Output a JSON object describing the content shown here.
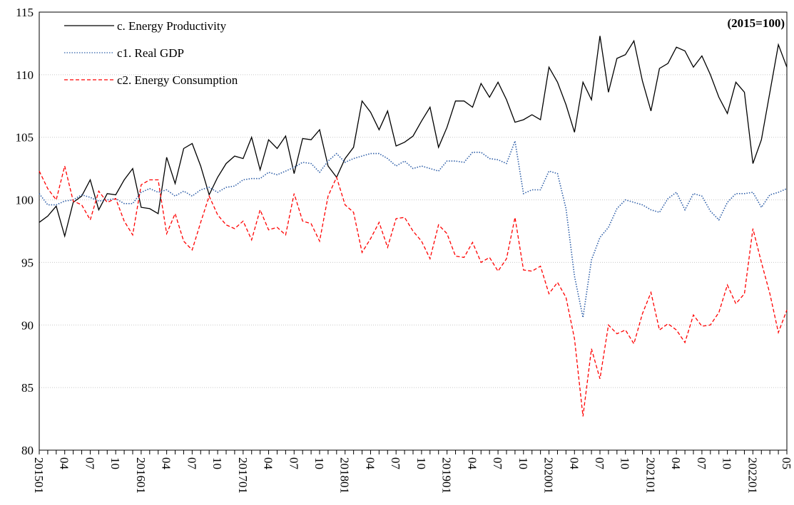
{
  "chart_data": {
    "type": "line",
    "annotation": "(2015=100)",
    "categories": [
      "201501",
      null,
      null,
      "04",
      null,
      null,
      "07",
      null,
      null,
      "10",
      null,
      null,
      "201601",
      null,
      null,
      "04",
      null,
      null,
      "07",
      null,
      null,
      "10",
      null,
      null,
      "201701",
      null,
      null,
      "04",
      null,
      null,
      "07",
      null,
      null,
      "10",
      null,
      null,
      "201801",
      null,
      null,
      "04",
      null,
      null,
      "07",
      null,
      null,
      "10",
      null,
      null,
      "201901",
      null,
      null,
      "04",
      null,
      null,
      "07",
      null,
      null,
      "10",
      null,
      null,
      "202001",
      null,
      null,
      "04",
      null,
      null,
      "07",
      null,
      null,
      "10",
      null,
      null,
      "202101",
      null,
      null,
      "04",
      null,
      null,
      "07",
      null,
      null,
      "10",
      null,
      null,
      "202201",
      null,
      null,
      null,
      "05"
    ],
    "series": [
      {
        "name": "c. Energy Productivity",
        "color": "#000000",
        "style": "solid",
        "values": [
          98.2,
          98.7,
          99.5,
          97.1,
          99.8,
          100.3,
          101.6,
          99.2,
          100.5,
          100.4,
          101.6,
          102.5,
          99.4,
          99.3,
          98.9,
          103.4,
          101.3,
          104.1,
          104.5,
          102.7,
          100.4,
          101.8,
          102.9,
          103.5,
          103.3,
          105.0,
          102.4,
          104.8,
          104.1,
          105.1,
          102.1,
          104.9,
          104.8,
          105.6,
          102.7,
          101.8,
          103.3,
          104.2,
          107.9,
          107.0,
          105.6,
          107.1,
          104.3,
          104.6,
          105.1,
          106.3,
          107.4,
          104.2,
          105.8,
          107.9,
          107.9,
          107.4,
          109.3,
          108.2,
          109.4,
          108.0,
          106.2,
          106.4,
          106.8,
          106.4,
          110.6,
          109.4,
          107.6,
          105.4,
          109.4,
          108.0,
          113.1,
          108.6,
          111.3,
          111.6,
          112.7,
          109.5,
          107.1,
          110.5,
          110.9,
          112.2,
          111.9,
          110.6,
          111.5,
          110.0,
          108.2,
          106.9,
          109.4,
          108.6,
          102.9,
          104.8,
          108.6,
          112.4,
          110.6
        ]
      },
      {
        "name": "c1. Real GDP",
        "color": "#2f5fa8",
        "style": "dotted",
        "values": [
          100.5,
          99.6,
          99.6,
          99.9,
          100.0,
          100.4,
          100.2,
          99.9,
          100.0,
          100.1,
          99.7,
          99.7,
          100.6,
          100.9,
          100.6,
          100.8,
          100.3,
          100.7,
          100.3,
          100.8,
          101.0,
          100.6,
          101.0,
          101.1,
          101.6,
          101.7,
          101.7,
          102.2,
          102.0,
          102.3,
          102.6,
          103.0,
          102.9,
          102.2,
          103.1,
          103.7,
          103.0,
          103.3,
          103.5,
          103.7,
          103.7,
          103.3,
          102.7,
          103.1,
          102.5,
          102.7,
          102.5,
          102.3,
          103.1,
          103.1,
          103.0,
          103.8,
          103.8,
          103.3,
          103.2,
          102.9,
          104.7,
          100.5,
          100.8,
          100.8,
          102.3,
          102.1,
          99.3,
          93.9,
          90.6,
          95.2,
          97.0,
          97.8,
          99.3,
          100.0,
          99.8,
          99.6,
          99.2,
          99.0,
          100.1,
          100.6,
          99.2,
          100.5,
          100.3,
          99.1,
          98.4,
          99.8,
          100.5,
          100.5,
          100.6,
          99.4,
          100.4,
          100.6,
          100.9
        ]
      },
      {
        "name": "c2. Energy Consumption",
        "color": "#ff0000",
        "style": "dashed",
        "values": [
          102.3,
          100.9,
          100.0,
          102.7,
          99.9,
          99.6,
          98.4,
          100.7,
          99.8,
          100.1,
          98.3,
          97.2,
          101.2,
          101.6,
          101.6,
          97.3,
          98.9,
          96.7,
          96.0,
          98.2,
          100.3,
          98.8,
          98.0,
          97.7,
          98.3,
          96.8,
          99.2,
          97.6,
          97.8,
          97.2,
          100.5,
          98.3,
          98.1,
          96.7,
          100.3,
          101.8,
          99.6,
          99.0,
          95.8,
          96.9,
          98.2,
          96.2,
          98.5,
          98.6,
          97.5,
          96.7,
          95.3,
          98.0,
          97.3,
          95.5,
          95.4,
          96.6,
          95.0,
          95.4,
          94.3,
          95.3,
          98.6,
          94.4,
          94.3,
          94.7,
          92.5,
          93.4,
          92.2,
          88.9,
          82.7,
          88.1,
          85.7,
          90.0,
          89.3,
          89.6,
          88.5,
          90.9,
          92.6,
          89.6,
          90.1,
          89.6,
          88.6,
          90.8,
          89.9,
          90.0,
          91.0,
          93.2,
          91.7,
          92.5,
          97.7,
          95.0,
          92.5,
          89.4,
          91.2
        ]
      }
    ],
    "ylim": [
      80,
      115
    ],
    "yticks": [
      80,
      85,
      90,
      95,
      100,
      105,
      110,
      115
    ],
    "grid": true
  }
}
